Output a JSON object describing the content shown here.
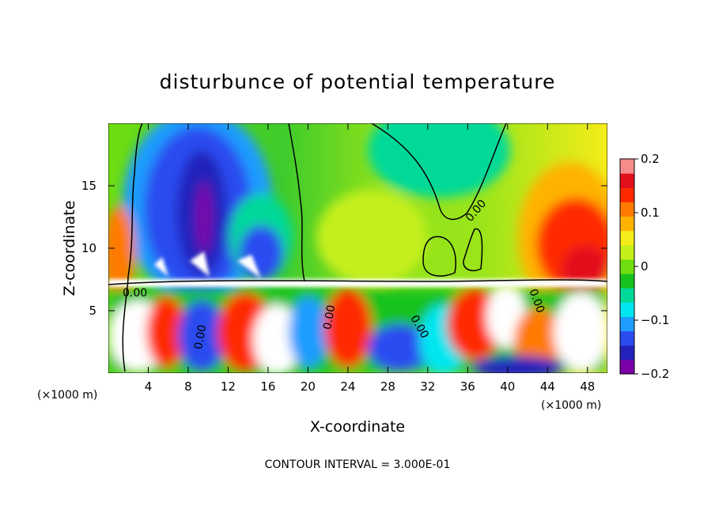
{
  "chart_data": {
    "type": "heatmap",
    "title": "disturbunce of potential temperature",
    "xlabel": "X-coordinate",
    "ylabel": "Z-coordinate",
    "x_unit": "(×1000 m)",
    "x_unit_right": "(×1000 m)",
    "xlim": [
      0,
      50
    ],
    "ylim": [
      0,
      20
    ],
    "x_ticks": [
      "4",
      "8",
      "12",
      "16",
      "20",
      "24",
      "28",
      "32",
      "36",
      "40",
      "44",
      "48"
    ],
    "y_ticks": [
      "5",
      "10",
      "15"
    ],
    "colorbar": {
      "range": [
        -0.2,
        0.2
      ],
      "tick_labels": [
        "0.2",
        "0.1",
        "0",
        "−0.1",
        "−0.2"
      ],
      "colors": [
        "#7b00a8",
        "#2222bb",
        "#2a4cf0",
        "#1f9cff",
        "#00e6f0",
        "#00d99a",
        "#17c21f",
        "#6fde10",
        "#c5ef1a",
        "#f5ec19",
        "#ffb300",
        "#ff7a00",
        "#ff2a00",
        "#e3101d",
        "#f78a8a"
      ]
    },
    "contour_labels": [
      "0.00",
      "0.00",
      "0.00",
      "0.00",
      "0.00",
      "0.00"
    ],
    "contour_interval": "CONTOUR INTERVAL = 3.000E-01"
  }
}
